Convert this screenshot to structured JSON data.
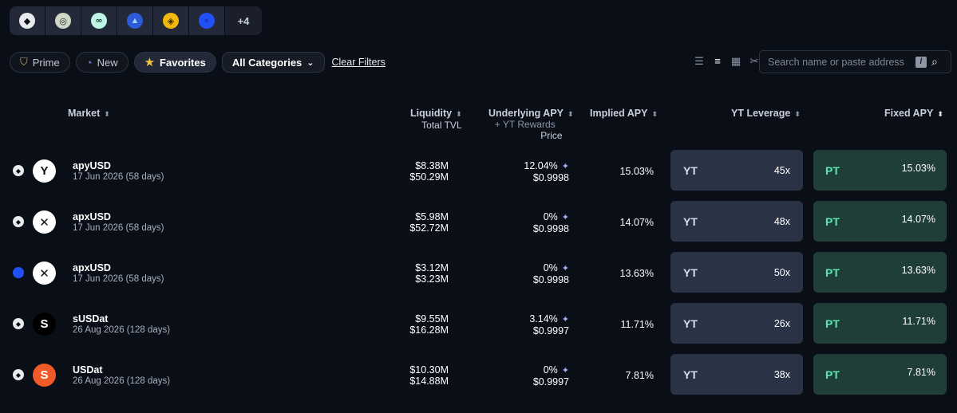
{
  "chain_tabs": [
    {
      "icon": "ethereum-icon",
      "glyph": "◆",
      "bg": "#e8eaee",
      "fg": "#0a0e17"
    },
    {
      "icon": "sonic-icon",
      "glyph": "◎",
      "bg": "#cfd6c4",
      "fg": "#1c2a24"
    },
    {
      "icon": "hyperevm-icon",
      "glyph": "∞",
      "bg": "#bff5e4",
      "fg": "#0f3a34"
    },
    {
      "icon": "arbitrum-icon",
      "glyph": "▲",
      "bg": "#2d5ad6",
      "fg": "#9fd4ff"
    },
    {
      "icon": "bnb-icon",
      "glyph": "◈",
      "bg": "#f0b90b",
      "fg": "#3a2b00"
    },
    {
      "icon": "base-icon",
      "glyph": "●",
      "bg": "#2151f5",
      "fg": "#1a3cc8"
    }
  ],
  "more_chains": "+4",
  "filters": {
    "prime": "Prime",
    "new": "New",
    "favorites": "Favorites",
    "categories": "All Categories",
    "clear": "Clear Filters"
  },
  "search": {
    "placeholder": "Search name or paste address",
    "shortcut": "/"
  },
  "headers": {
    "market": "Market",
    "liquidity": "Liquidity",
    "total_tvl": "Total TVL",
    "underlying_apy": "Underlying APY",
    "yt_rewards": "+ YT Rewards",
    "price": "Price",
    "implied_apy": "Implied APY",
    "yt_leverage": "YT Leverage",
    "fixed_apy": "Fixed APY"
  },
  "yt_label": "YT",
  "pt_label": "PT",
  "rows": [
    {
      "chain": "ethereum",
      "logo_glyph": "Y",
      "logo_bg": "#ffffff",
      "logo_fg": "#111111",
      "name": "apyUSD",
      "date": "17 Jun 2026 (58 days)",
      "liquidity": "$8.38M",
      "tvl": "$50.29M",
      "underlying_apy": "12.04%",
      "price": "$0.9998",
      "implied_apy": "15.03%",
      "leverage": "45x",
      "fixed_apy": "15.03%"
    },
    {
      "chain": "ethereum",
      "logo_glyph": "✕",
      "logo_bg": "#ffffff",
      "logo_fg": "#111111",
      "name": "apxUSD",
      "date": "17 Jun 2026 (58 days)",
      "liquidity": "$5.98M",
      "tvl": "$52.72M",
      "underlying_apy": "0%",
      "price": "$0.9998",
      "implied_apy": "14.07%",
      "leverage": "48x",
      "fixed_apy": "14.07%"
    },
    {
      "chain": "base",
      "logo_glyph": "✕",
      "logo_bg": "#ffffff",
      "logo_fg": "#111111",
      "name": "apxUSD",
      "date": "17 Jun 2026 (58 days)",
      "liquidity": "$3.12M",
      "tvl": "$3.23M",
      "underlying_apy": "0%",
      "price": "$0.9998",
      "implied_apy": "13.63%",
      "leverage": "50x",
      "fixed_apy": "13.63%"
    },
    {
      "chain": "ethereum",
      "logo_glyph": "S",
      "logo_bg": "#000000",
      "logo_fg": "#ffffff",
      "name": "sUSDat",
      "date": "26 Aug 2026 (128 days)",
      "liquidity": "$9.55M",
      "tvl": "$16.28M",
      "underlying_apy": "3.14%",
      "price": "$0.9997",
      "implied_apy": "11.71%",
      "leverage": "26x",
      "fixed_apy": "11.71%"
    },
    {
      "chain": "ethereum",
      "logo_glyph": "S",
      "logo_bg": "#f05a28",
      "logo_fg": "#ffffff",
      "name": "USDat",
      "date": "26 Aug 2026 (128 days)",
      "liquidity": "$10.30M",
      "tvl": "$14.88M",
      "underlying_apy": "0%",
      "price": "$0.9997",
      "implied_apy": "7.81%",
      "leverage": "38x",
      "fixed_apy": "7.81%"
    }
  ]
}
